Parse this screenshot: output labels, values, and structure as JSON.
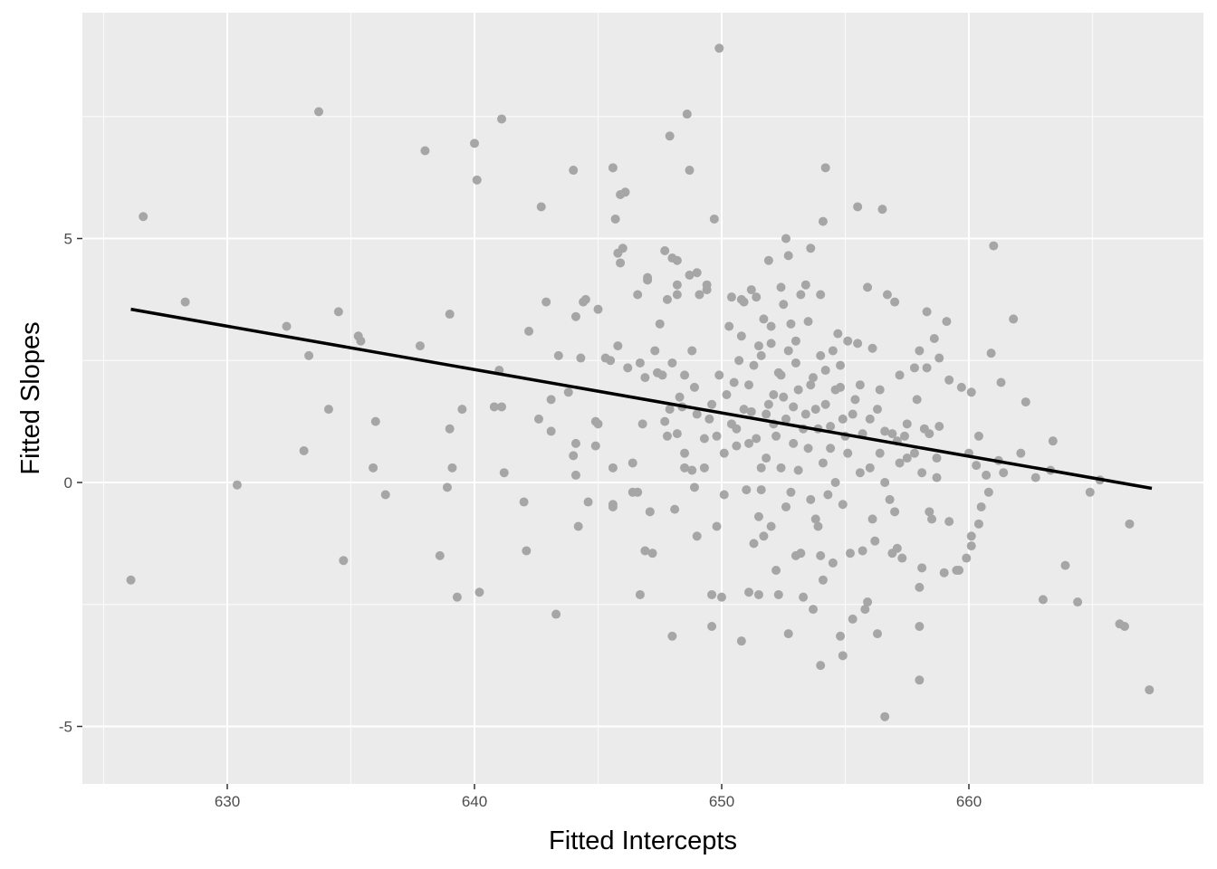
{
  "chart_data": {
    "type": "scatter",
    "title": "",
    "xlabel": "Fitted Intercepts",
    "ylabel": "Fitted Slopes",
    "xlim": [
      624.9,
      670.2
    ],
    "ylim": [
      -6.2,
      9.6
    ],
    "x_ticks": [
      630,
      640,
      650,
      660
    ],
    "y_ticks": [
      -5,
      0,
      5
    ],
    "x_tick_labels": [
      "630",
      "640",
      "650",
      "660"
    ],
    "y_tick_labels": [
      "-5",
      "0",
      "5"
    ],
    "grid": true,
    "legend": null,
    "colors": {
      "panel_background": "#ebebeb",
      "grid_major": "#ffffff",
      "points": "#a6a6a6",
      "fit_line": "#000000"
    },
    "fit_line": {
      "type": "linear regression",
      "x": [
        626.1,
        667.4
      ],
      "y": [
        3.55,
        -0.12
      ]
    },
    "points": [
      [
        626.1,
        -2.0
      ],
      [
        626.6,
        5.45
      ],
      [
        628.3,
        3.7
      ],
      [
        630.4,
        -0.05
      ],
      [
        632.4,
        3.2
      ],
      [
        633.1,
        0.65
      ],
      [
        633.3,
        2.6
      ],
      [
        633.7,
        7.6
      ],
      [
        634.1,
        1.5
      ],
      [
        634.5,
        3.5
      ],
      [
        634.7,
        -1.6
      ],
      [
        635.3,
        3.0
      ],
      [
        635.4,
        2.9
      ],
      [
        635.9,
        0.3
      ],
      [
        636.0,
        1.25
      ],
      [
        636.4,
        -0.25
      ],
      [
        637.8,
        2.8
      ],
      [
        638.0,
        6.8
      ],
      [
        638.6,
        -1.5
      ],
      [
        638.9,
        -0.1
      ],
      [
        639.0,
        1.1
      ],
      [
        639.0,
        3.45
      ],
      [
        639.1,
        0.3
      ],
      [
        639.3,
        -2.35
      ],
      [
        639.5,
        1.5
      ],
      [
        640.0,
        6.95
      ],
      [
        640.1,
        6.2
      ],
      [
        640.2,
        -2.25
      ],
      [
        640.8,
        1.55
      ],
      [
        641.0,
        2.3
      ],
      [
        641.1,
        1.55
      ],
      [
        641.1,
        7.45
      ],
      [
        641.2,
        0.2
      ],
      [
        642.0,
        -0.4
      ],
      [
        642.1,
        -1.4
      ],
      [
        642.2,
        3.1
      ],
      [
        642.6,
        1.3
      ],
      [
        642.7,
        5.65
      ],
      [
        642.9,
        3.7
      ],
      [
        643.1,
        1.05
      ],
      [
        643.1,
        1.7
      ],
      [
        643.3,
        -2.7
      ],
      [
        643.4,
        2.6
      ],
      [
        643.8,
        1.85
      ],
      [
        644.0,
        0.55
      ],
      [
        644.1,
        0.8
      ],
      [
        644.1,
        0.15
      ],
      [
        644.2,
        -0.9
      ],
      [
        644.0,
        6.4
      ],
      [
        644.1,
        3.4
      ],
      [
        644.3,
        2.55
      ],
      [
        644.4,
        3.7
      ],
      [
        644.5,
        3.75
      ],
      [
        644.6,
        -0.4
      ],
      [
        644.9,
        0.75
      ],
      [
        644.9,
        1.25
      ],
      [
        645.0,
        1.2
      ],
      [
        645.0,
        3.55
      ],
      [
        645.3,
        2.55
      ],
      [
        645.5,
        2.5
      ],
      [
        645.6,
        -0.45
      ],
      [
        645.6,
        -0.5
      ],
      [
        645.6,
        0.3
      ],
      [
        645.6,
        6.45
      ],
      [
        645.7,
        5.4
      ],
      [
        645.8,
        4.7
      ],
      [
        645.8,
        2.8
      ],
      [
        645.9,
        5.9
      ],
      [
        645.9,
        4.5
      ],
      [
        646.1,
        5.95
      ],
      [
        646.0,
        4.8
      ],
      [
        646.2,
        2.35
      ],
      [
        646.4,
        -0.2
      ],
      [
        646.4,
        0.4
      ],
      [
        646.6,
        -0.2
      ],
      [
        646.6,
        3.85
      ],
      [
        646.7,
        2.45
      ],
      [
        646.7,
        -2.3
      ],
      [
        646.8,
        1.2
      ],
      [
        646.9,
        -1.4
      ],
      [
        646.9,
        2.15
      ],
      [
        647.0,
        4.15
      ],
      [
        647.0,
        4.2
      ],
      [
        647.1,
        -0.6
      ],
      [
        647.2,
        -1.45
      ],
      [
        647.3,
        2.7
      ],
      [
        647.4,
        2.25
      ],
      [
        647.5,
        3.25
      ],
      [
        647.6,
        2.2
      ],
      [
        647.7,
        1.25
      ],
      [
        647.7,
        4.75
      ],
      [
        647.8,
        3.75
      ],
      [
        647.8,
        0.95
      ],
      [
        647.9,
        7.1
      ],
      [
        648.0,
        4.6
      ],
      [
        648.0,
        2.45
      ],
      [
        648.0,
        -3.15
      ],
      [
        648.1,
        -0.55
      ],
      [
        648.2,
        3.85
      ],
      [
        648.2,
        4.55
      ],
      [
        648.2,
        4.05
      ],
      [
        648.3,
        1.75
      ],
      [
        648.4,
        1.55
      ],
      [
        648.5,
        0.6
      ],
      [
        648.5,
        2.2
      ],
      [
        648.6,
        7.55
      ],
      [
        648.7,
        6.4
      ],
      [
        648.7,
        4.25
      ],
      [
        648.8,
        0.25
      ],
      [
        648.9,
        -0.1
      ],
      [
        648.9,
        1.95
      ],
      [
        649.0,
        4.3
      ],
      [
        649.0,
        -1.1
      ],
      [
        649.1,
        3.85
      ],
      [
        649.3,
        0.3
      ],
      [
        649.4,
        4.05
      ],
      [
        649.4,
        3.95
      ],
      [
        649.5,
        1.3
      ],
      [
        649.6,
        -2.3
      ],
      [
        649.6,
        -2.95
      ],
      [
        649.7,
        5.4
      ],
      [
        649.8,
        0.95
      ],
      [
        649.8,
        -0.9
      ],
      [
        649.9,
        8.9
      ],
      [
        650.0,
        -2.35
      ],
      [
        650.1,
        -0.25
      ],
      [
        650.2,
        1.8
      ],
      [
        650.3,
        3.2
      ],
      [
        650.4,
        3.8
      ],
      [
        650.5,
        2.05
      ],
      [
        650.6,
        1.1
      ],
      [
        650.6,
        0.75
      ],
      [
        650.8,
        -3.25
      ],
      [
        650.8,
        3.75
      ],
      [
        650.9,
        3.7
      ],
      [
        651.0,
        -0.15
      ],
      [
        651.1,
        -2.25
      ],
      [
        651.1,
        0.8
      ],
      [
        651.2,
        3.95
      ],
      [
        651.2,
        1.45
      ],
      [
        651.3,
        -1.25
      ],
      [
        651.3,
        2.4
      ],
      [
        651.4,
        3.8
      ],
      [
        651.5,
        2.8
      ],
      [
        651.5,
        -0.7
      ],
      [
        651.5,
        -2.3
      ],
      [
        651.6,
        0.3
      ],
      [
        651.6,
        -0.15
      ],
      [
        651.7,
        3.35
      ],
      [
        651.7,
        -1.1
      ],
      [
        651.8,
        0.5
      ],
      [
        651.9,
        1.6
      ],
      [
        651.9,
        4.55
      ],
      [
        652.0,
        -0.9
      ],
      [
        652.0,
        2.85
      ],
      [
        652.1,
        1.2
      ],
      [
        652.2,
        -1.8
      ],
      [
        652.2,
        0.95
      ],
      [
        652.3,
        -2.3
      ],
      [
        652.3,
        2.25
      ],
      [
        652.4,
        4.0
      ],
      [
        652.4,
        0.3
      ],
      [
        652.5,
        3.65
      ],
      [
        652.5,
        1.75
      ],
      [
        652.6,
        -0.5
      ],
      [
        652.6,
        5.0
      ],
      [
        652.7,
        -3.1
      ],
      [
        652.7,
        2.7
      ],
      [
        652.7,
        4.65
      ],
      [
        652.8,
        3.25
      ],
      [
        652.8,
        -0.2
      ],
      [
        652.9,
        1.55
      ],
      [
        653.0,
        -1.5
      ],
      [
        653.0,
        2.45
      ],
      [
        653.1,
        0.25
      ],
      [
        653.2,
        3.85
      ],
      [
        653.2,
        -1.45
      ],
      [
        653.3,
        1.1
      ],
      [
        653.3,
        -2.35
      ],
      [
        653.4,
        4.05
      ],
      [
        653.5,
        0.7
      ],
      [
        653.6,
        -0.35
      ],
      [
        653.6,
        4.8
      ],
      [
        653.7,
        2.15
      ],
      [
        653.7,
        -2.6
      ],
      [
        653.8,
        1.5
      ],
      [
        653.8,
        -0.75
      ],
      [
        653.9,
        -0.9
      ],
      [
        654.0,
        -1.5
      ],
      [
        654.0,
        -3.75
      ],
      [
        654.0,
        3.85
      ],
      [
        654.1,
        0.4
      ],
      [
        654.1,
        -2.0
      ],
      [
        654.1,
        5.35
      ],
      [
        654.2,
        6.45
      ],
      [
        654.2,
        2.3
      ],
      [
        654.3,
        -0.25
      ],
      [
        654.4,
        1.15
      ],
      [
        654.5,
        2.7
      ],
      [
        654.5,
        -1.65
      ],
      [
        654.6,
        0.0
      ],
      [
        654.7,
        3.05
      ],
      [
        654.8,
        -3.15
      ],
      [
        654.8,
        1.95
      ],
      [
        654.9,
        -0.45
      ],
      [
        654.9,
        -3.55
      ],
      [
        655.0,
        0.95
      ],
      [
        655.1,
        2.9
      ],
      [
        655.2,
        -1.45
      ],
      [
        655.3,
        -2.8
      ],
      [
        655.3,
        1.4
      ],
      [
        655.5,
        5.65
      ],
      [
        655.5,
        2.85
      ],
      [
        655.6,
        0.2
      ],
      [
        655.7,
        -1.4
      ],
      [
        655.8,
        -2.6
      ],
      [
        655.9,
        4.0
      ],
      [
        655.9,
        -2.45
      ],
      [
        656.0,
        1.3
      ],
      [
        656.1,
        2.75
      ],
      [
        656.1,
        -0.75
      ],
      [
        656.2,
        -1.2
      ],
      [
        656.3,
        -3.1
      ],
      [
        656.4,
        0.6
      ],
      [
        656.5,
        5.6
      ],
      [
        656.6,
        -4.8
      ],
      [
        656.6,
        1.05
      ],
      [
        656.7,
        3.85
      ],
      [
        656.8,
        -0.35
      ],
      [
        656.9,
        -1.45
      ],
      [
        657.0,
        -0.6
      ],
      [
        657.0,
        3.7
      ],
      [
        657.1,
        0.85
      ],
      [
        657.1,
        -1.35
      ],
      [
        657.3,
        -1.55
      ],
      [
        657.4,
        0.95
      ],
      [
        657.5,
        0.5
      ],
      [
        657.8,
        2.35
      ],
      [
        657.9,
        1.7
      ],
      [
        658.0,
        -2.15
      ],
      [
        658.0,
        2.7
      ],
      [
        658.0,
        -2.95
      ],
      [
        658.0,
        -4.05
      ],
      [
        658.1,
        -1.75
      ],
      [
        658.2,
        1.1
      ],
      [
        658.3,
        2.35
      ],
      [
        658.3,
        3.5
      ],
      [
        658.4,
        -0.6
      ],
      [
        658.5,
        -0.75
      ],
      [
        658.6,
        2.95
      ],
      [
        658.7,
        0.1
      ],
      [
        658.8,
        1.15
      ],
      [
        658.8,
        2.55
      ],
      [
        659.0,
        -1.85
      ],
      [
        659.1,
        3.3
      ],
      [
        659.2,
        -0.8
      ],
      [
        659.2,
        2.1
      ],
      [
        659.5,
        -1.8
      ],
      [
        659.6,
        -1.8
      ],
      [
        659.7,
        1.95
      ],
      [
        659.9,
        -1.55
      ],
      [
        660.0,
        0.6
      ],
      [
        660.1,
        -1.3
      ],
      [
        660.1,
        1.85
      ],
      [
        660.1,
        -1.1
      ],
      [
        660.3,
        0.35
      ],
      [
        660.4,
        -0.85
      ],
      [
        660.4,
        0.95
      ],
      [
        660.5,
        -0.5
      ],
      [
        660.7,
        0.15
      ],
      [
        660.8,
        -0.2
      ],
      [
        660.9,
        2.65
      ],
      [
        661.0,
        4.85
      ],
      [
        661.2,
        0.45
      ],
      [
        661.3,
        2.05
      ],
      [
        661.4,
        0.2
      ],
      [
        661.8,
        3.35
      ],
      [
        662.1,
        0.6
      ],
      [
        662.3,
        1.65
      ],
      [
        662.7,
        0.1
      ],
      [
        663.0,
        -2.4
      ],
      [
        663.3,
        0.25
      ],
      [
        663.4,
        0.85
      ],
      [
        663.9,
        -1.7
      ],
      [
        664.4,
        -2.45
      ],
      [
        664.9,
        -0.2
      ],
      [
        665.3,
        0.05
      ],
      [
        666.1,
        -2.9
      ],
      [
        666.3,
        -2.95
      ],
      [
        666.5,
        -0.85
      ],
      [
        667.3,
        -4.25
      ],
      [
        651.8,
        1.4
      ],
      [
        652.1,
        1.8
      ],
      [
        652.4,
        2.2
      ],
      [
        652.6,
        1.3
      ],
      [
        652.9,
        0.8
      ],
      [
        653.1,
        1.9
      ],
      [
        653.4,
        1.4
      ],
      [
        653.6,
        2.0
      ],
      [
        653.9,
        1.1
      ],
      [
        654.2,
        1.6
      ],
      [
        654.4,
        0.7
      ],
      [
        654.6,
        1.9
      ],
      [
        654.9,
        1.3
      ],
      [
        655.1,
        0.6
      ],
      [
        655.4,
        1.7
      ],
      [
        655.7,
        1.0
      ],
      [
        656.0,
        0.3
      ],
      [
        656.3,
        1.5
      ],
      [
        656.6,
        0.0
      ],
      [
        656.9,
        1.0
      ],
      [
        657.2,
        0.4
      ],
      [
        657.5,
        1.2
      ],
      [
        657.8,
        0.6
      ],
      [
        658.1,
        0.2
      ],
      [
        658.4,
        1.0
      ],
      [
        658.7,
        0.5
      ],
      [
        650.9,
        1.5
      ],
      [
        651.1,
        2.0
      ],
      [
        651.4,
        0.9
      ],
      [
        650.7,
        2.5
      ],
      [
        650.4,
        1.2
      ],
      [
        650.1,
        0.6
      ],
      [
        649.9,
        2.2
      ],
      [
        649.6,
        1.6
      ],
      [
        649.3,
        0.9
      ],
      [
        649.0,
        1.4
      ],
      [
        648.8,
        2.7
      ],
      [
        648.5,
        0.3
      ],
      [
        648.2,
        1.0
      ],
      [
        647.9,
        1.5
      ],
      [
        653.0,
        2.9
      ],
      [
        653.5,
        3.3
      ],
      [
        654.0,
        2.6
      ],
      [
        654.8,
        2.4
      ],
      [
        655.6,
        2.0
      ],
      [
        656.4,
        1.9
      ],
      [
        657.2,
        2.2
      ],
      [
        652.0,
        3.2
      ],
      [
        651.6,
        2.6
      ],
      [
        650.8,
        3.0
      ]
    ]
  }
}
